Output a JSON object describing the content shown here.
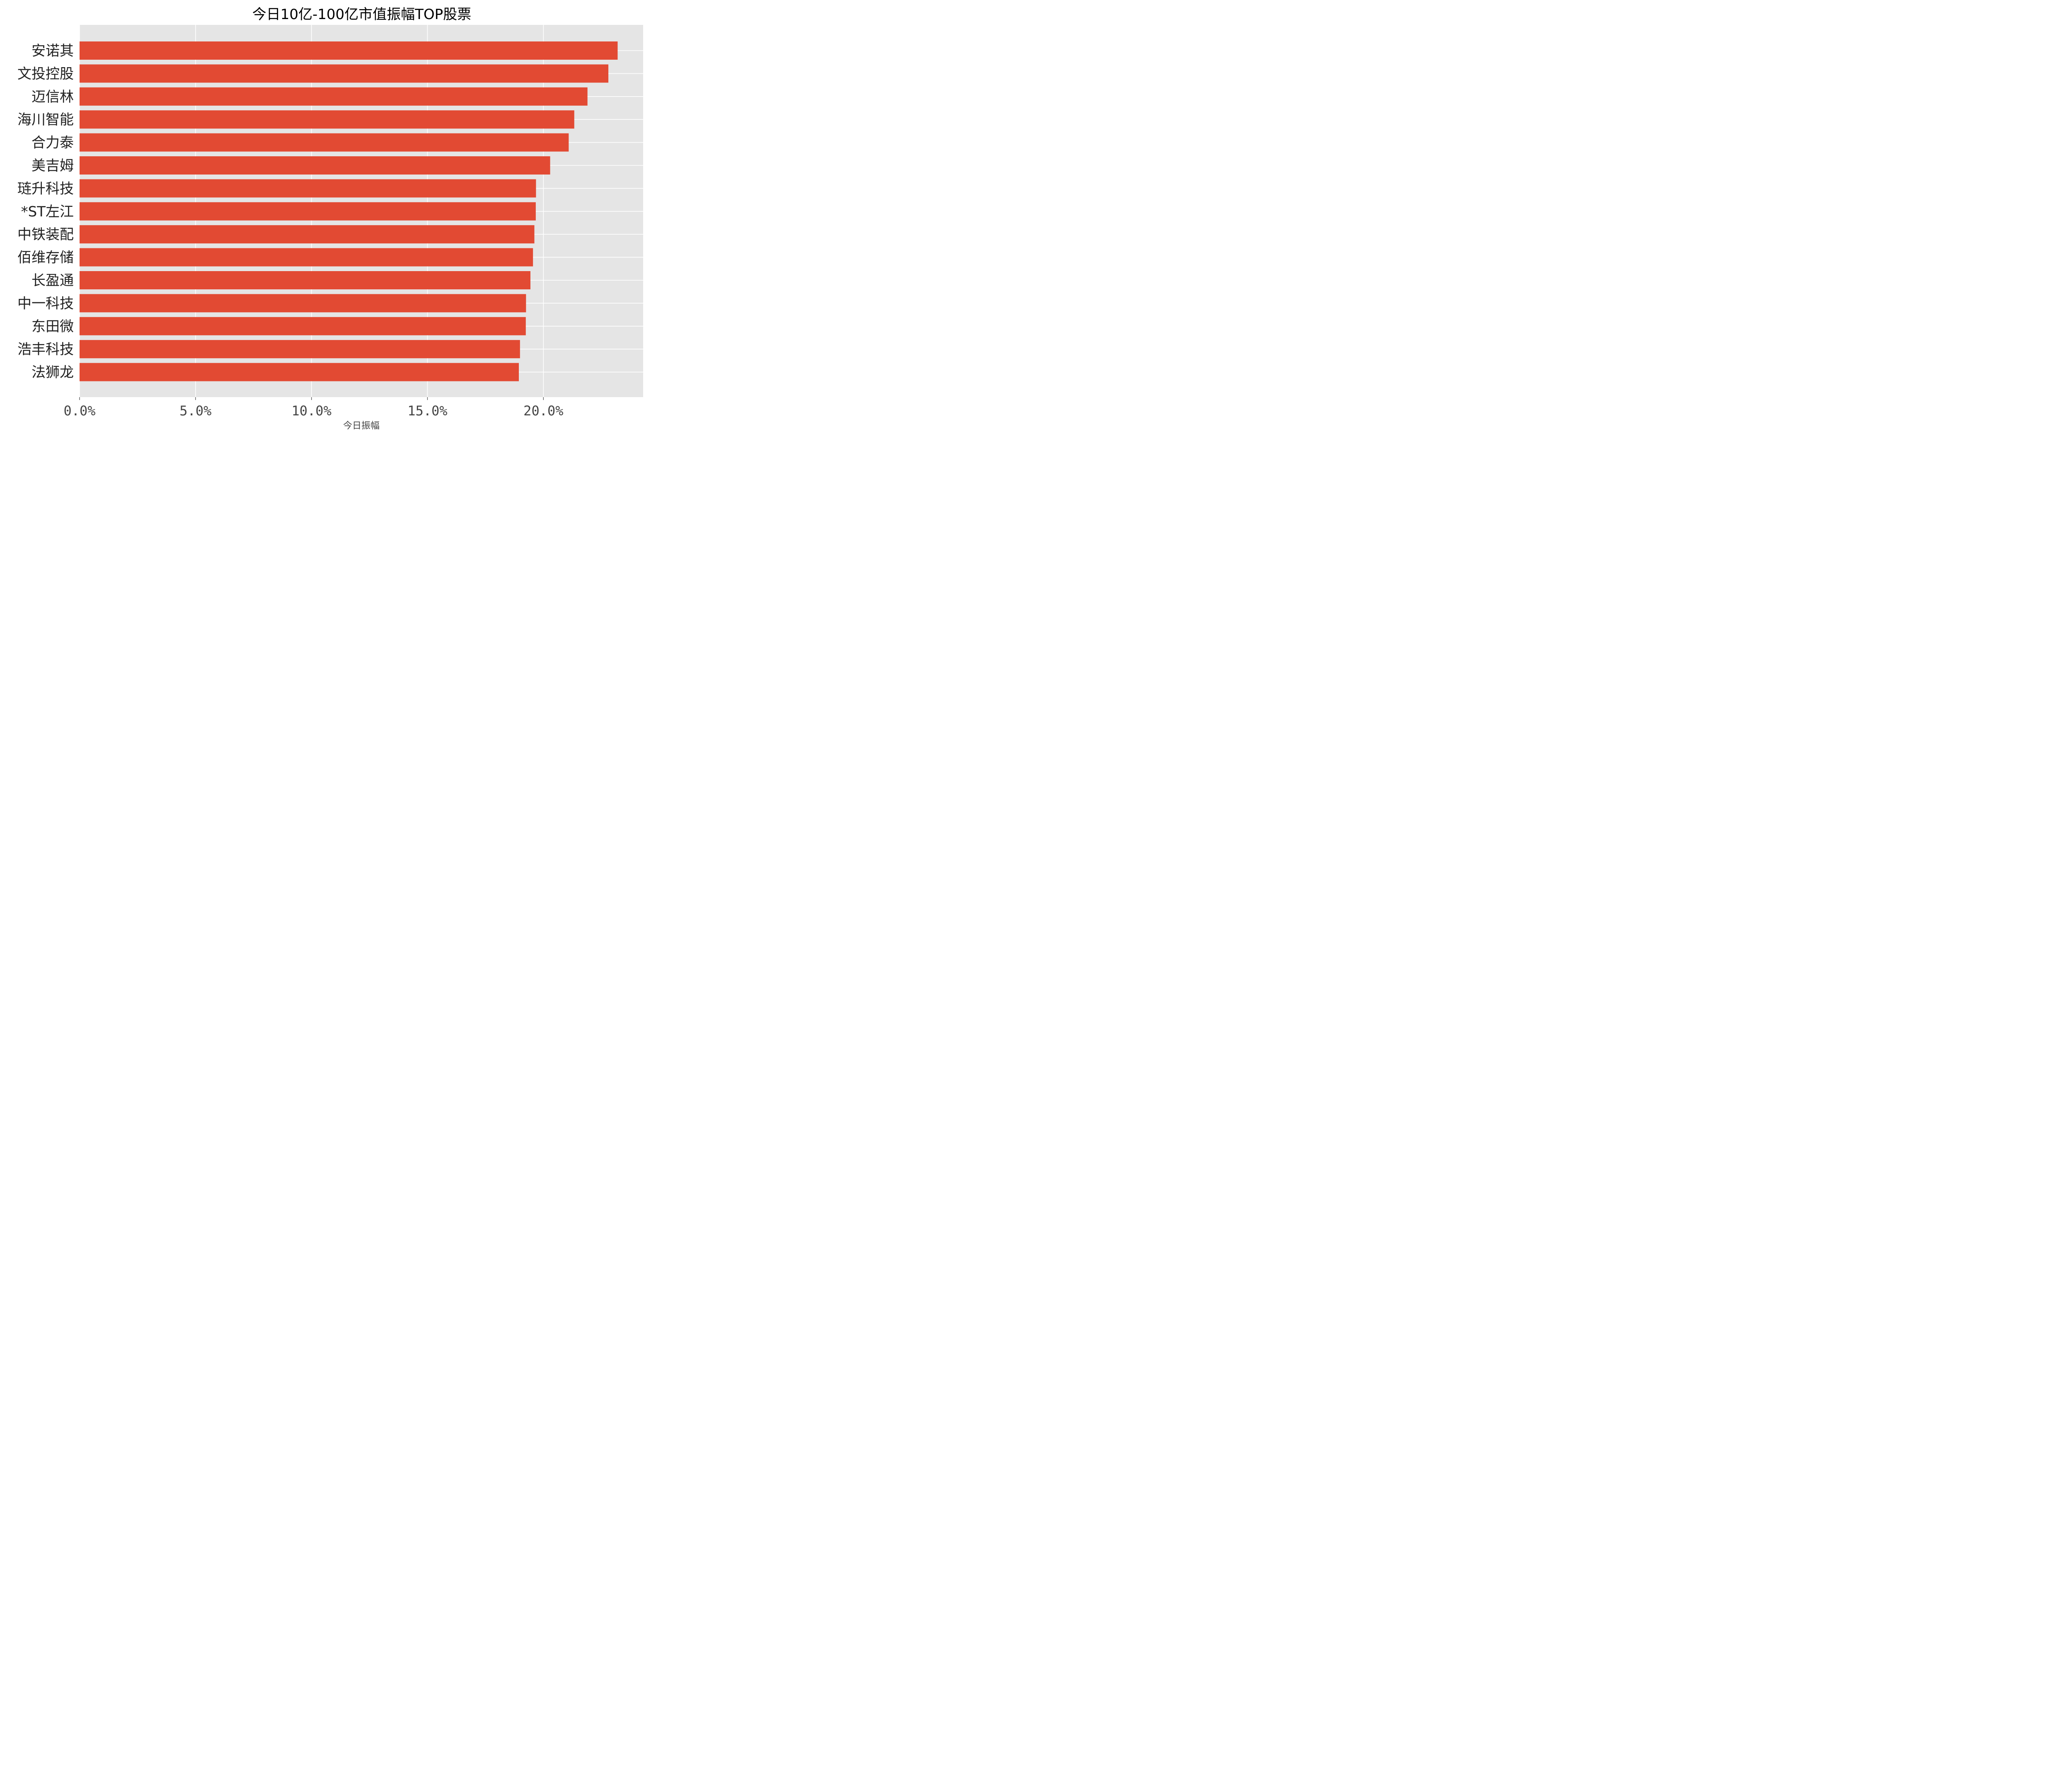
{
  "chart_data": {
    "type": "bar",
    "orientation": "horizontal",
    "title": "今日10亿-100亿市值振幅TOP股票",
    "xlabel": "今日振幅",
    "ylabel": "",
    "categories": [
      "安诺其",
      "文投控股",
      "迈信林",
      "海川智能",
      "合力泰",
      "美吉姆",
      "琏升科技",
      "*ST左江",
      "中铁装配",
      "佰维存储",
      "长盈通",
      "中一科技",
      "东田微",
      "浩丰科技",
      "法狮龙"
    ],
    "values": [
      23.2,
      22.8,
      21.9,
      21.33,
      21.09,
      20.29,
      19.68,
      19.67,
      19.61,
      19.55,
      19.44,
      19.25,
      19.24,
      18.99,
      18.94
    ],
    "xticks": [
      0,
      5,
      10,
      15,
      20
    ],
    "xtick_labels": [
      "0.0%",
      "5.0%",
      "10.0%",
      "15.0%",
      "20.0%"
    ],
    "xlim": [
      0,
      24.3
    ],
    "grid": true,
    "legend": "none",
    "colors": {
      "bar": "#e24a33",
      "plot_background": "#e5e5e5",
      "grid": "#ffffff"
    }
  }
}
